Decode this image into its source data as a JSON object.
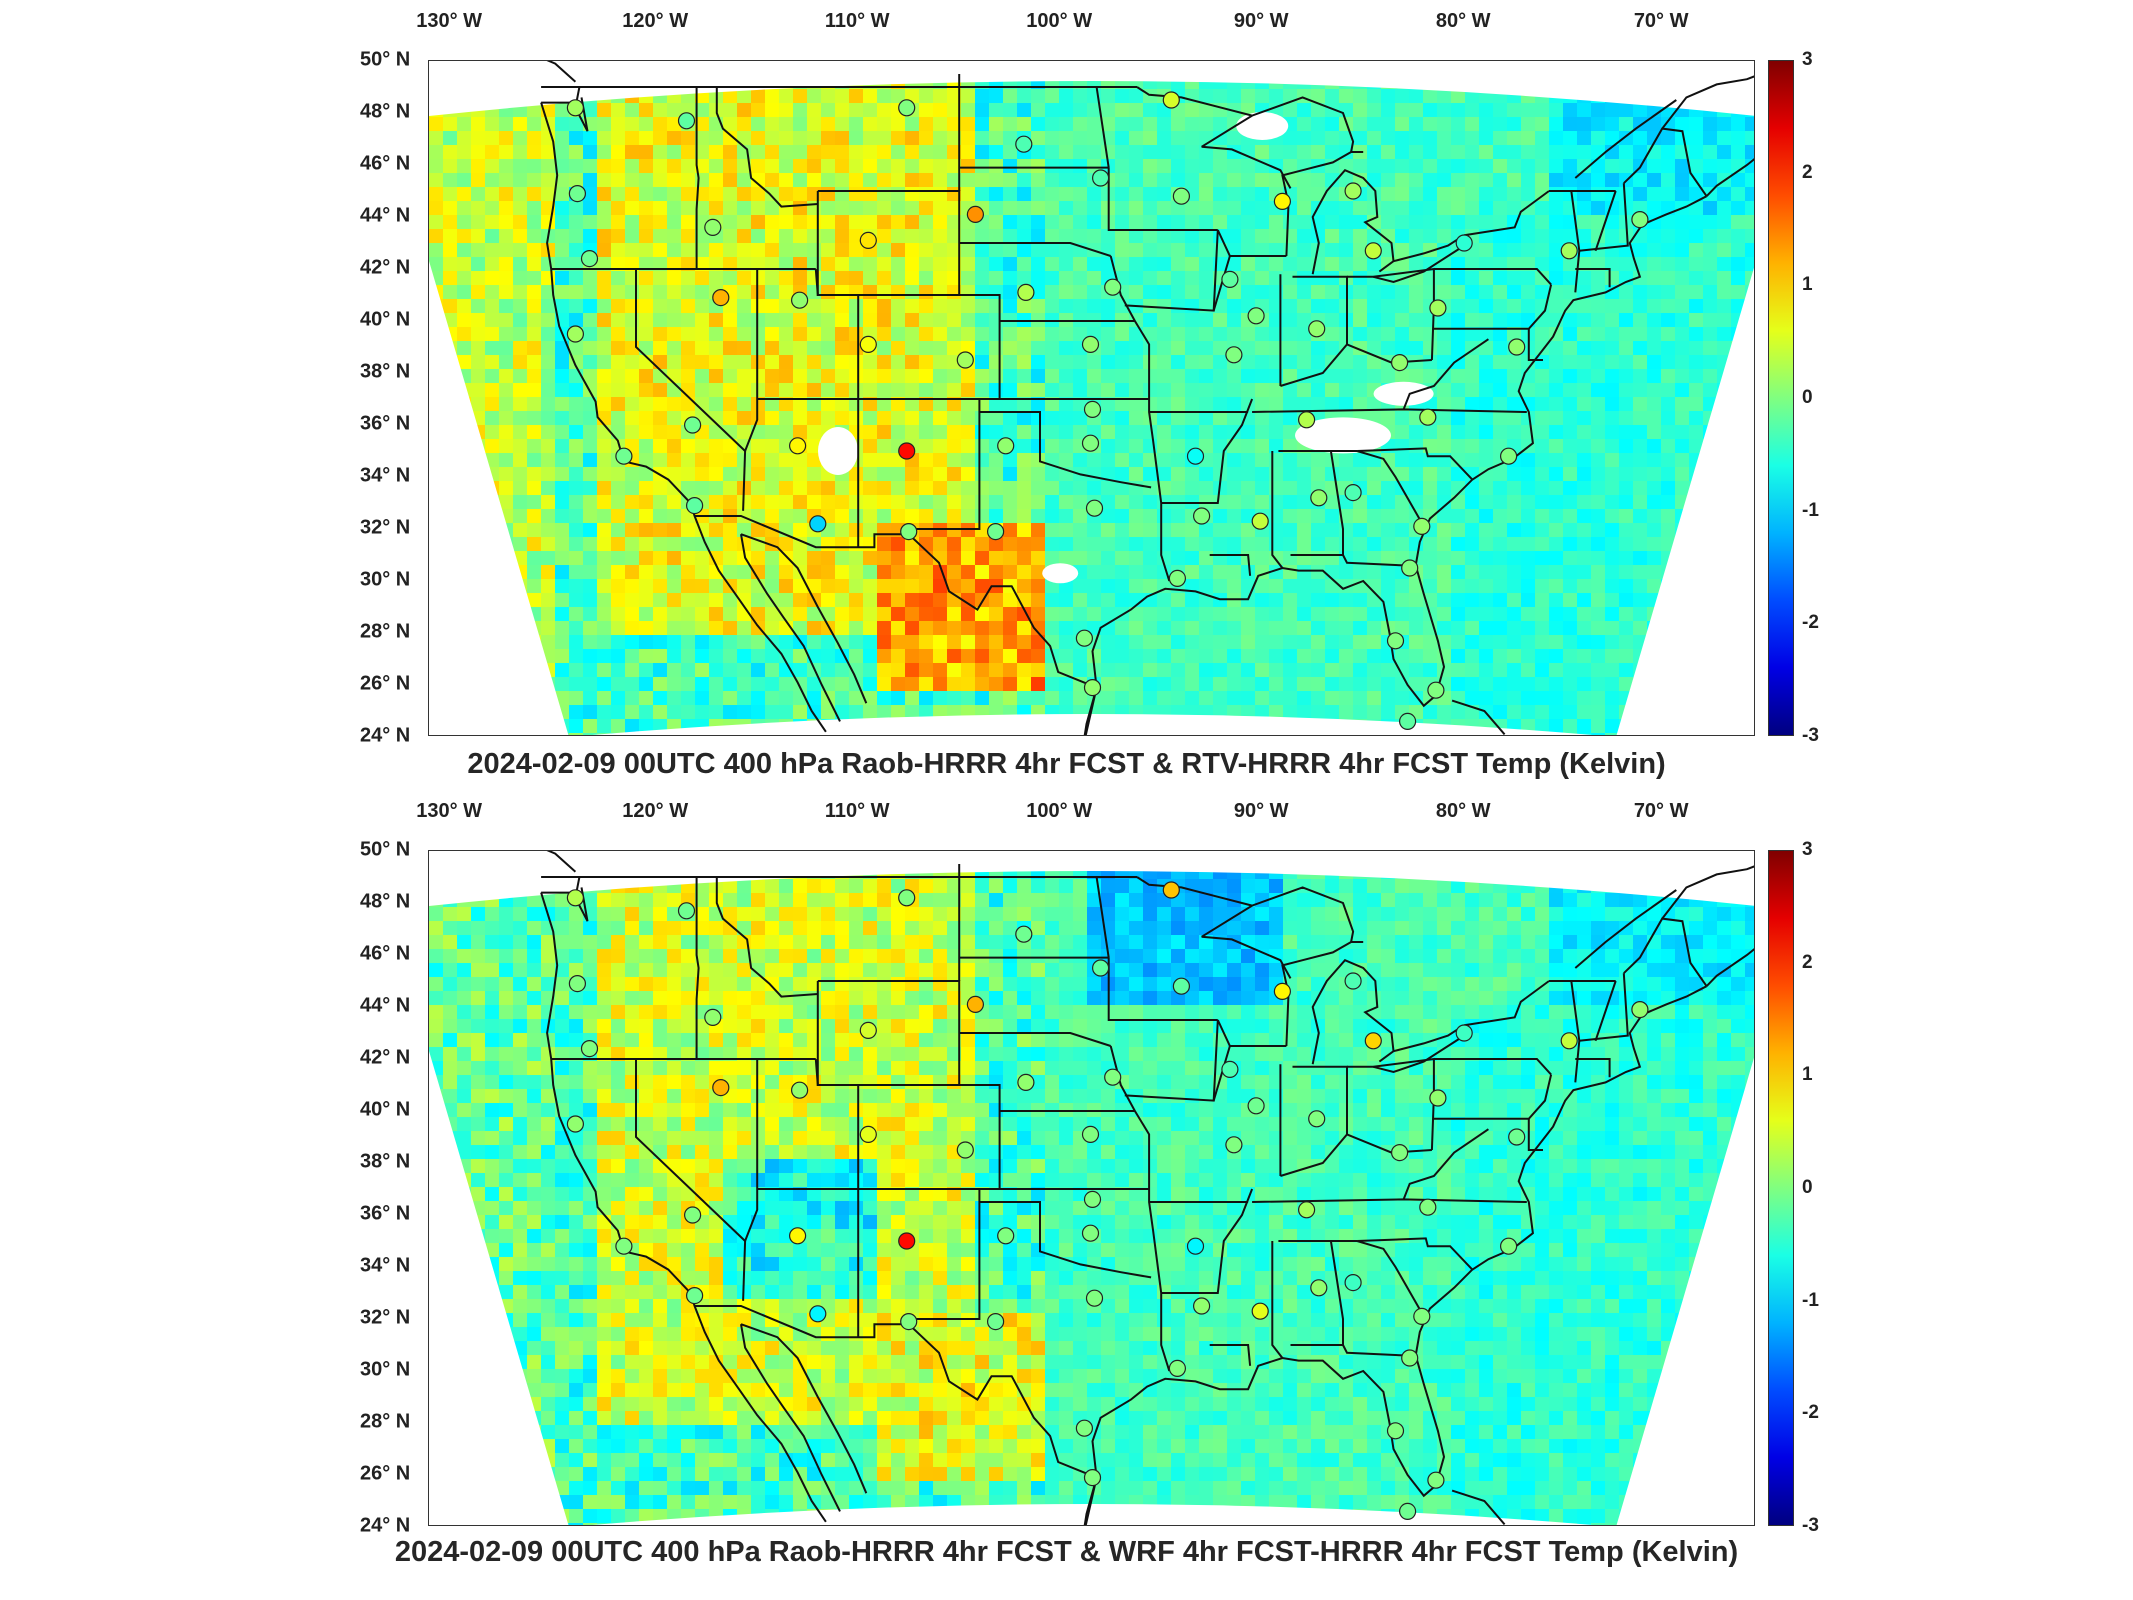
{
  "colors": {
    "colormap": "jet",
    "frame": "#333333",
    "borders": "#111111",
    "missing_data": "#ffffff"
  },
  "legend": {
    "ticks": [
      "3",
      "2",
      "1",
      "0",
      "-1",
      "-2",
      "-3"
    ],
    "range": [
      -3,
      3
    ]
  },
  "axes": {
    "lon_labels": [
      "130° W",
      "120° W",
      "110° W",
      "100° W",
      "90° W",
      "80° W",
      "70° W"
    ],
    "lat_labels": [
      "50° N",
      "48° N",
      "46° N",
      "44° N",
      "42° N",
      "40° N",
      "38° N",
      "36° N",
      "34° N",
      "32° N",
      "30° N",
      "28° N",
      "26° N",
      "24° N"
    ]
  },
  "panels": [
    {
      "title": "2024-02-09 00UTC 400 hPa Raob-HRRR 4hr FCST & RTV-HRRR 4hr FCST Temp (Kelvin)",
      "field": "RTV-HRRR minus HRRR temperature difference",
      "missing_regions": true
    },
    {
      "title": "2024-02-09 00UTC 400 hPa Raob-HRRR 4hr FCST & WRF 4hr FCST-HRRR 4hr FCST Temp (Kelvin)",
      "field": "WRF minus HRRR temperature difference",
      "missing_regions": false
    }
  ],
  "chart_data": {
    "type": "heatmap",
    "units": "Kelvin",
    "value_range": [
      -3,
      3
    ],
    "raob_stations": [
      {
        "lon": -123.0,
        "lat": 48.2,
        "top": 0.2,
        "bottom": 0.3
      },
      {
        "lon": -117.5,
        "lat": 47.7,
        "top": -0.2,
        "bottom": -0.1
      },
      {
        "lon": -106.6,
        "lat": 48.2,
        "top": 0.0,
        "bottom": 0.0
      },
      {
        "lon": -100.8,
        "lat": 46.8,
        "top": -0.3,
        "bottom": -0.1
      },
      {
        "lon": -97.0,
        "lat": 45.5,
        "top": -0.3,
        "bottom": -0.2
      },
      {
        "lon": -93.5,
        "lat": 48.5,
        "top": 0.5,
        "bottom": 1.1
      },
      {
        "lon": -93.0,
        "lat": 44.8,
        "top": 0.0,
        "bottom": -0.2
      },
      {
        "lon": -88.0,
        "lat": 44.6,
        "top": 0.8,
        "bottom": 0.8
      },
      {
        "lon": -84.5,
        "lat": 45.0,
        "top": 0.2,
        "bottom": -0.3
      },
      {
        "lon": -83.5,
        "lat": 42.7,
        "top": 0.4,
        "bottom": 1.0
      },
      {
        "lon": -79.0,
        "lat": 43.0,
        "top": -0.5,
        "bottom": -0.4
      },
      {
        "lon": -73.8,
        "lat": 42.7,
        "top": 0.2,
        "bottom": 0.4
      },
      {
        "lon": -70.3,
        "lat": 43.9,
        "top": 0.0,
        "bottom": 0.1
      },
      {
        "lon": -122.9,
        "lat": 44.9,
        "top": -0.1,
        "bottom": 0.0
      },
      {
        "lon": -116.2,
        "lat": 43.6,
        "top": 0.1,
        "bottom": 0.1
      },
      {
        "lon": -108.5,
        "lat": 43.1,
        "top": 0.9,
        "bottom": 0.5
      },
      {
        "lon": -103.2,
        "lat": 44.1,
        "top": 1.4,
        "bottom": 1.2
      },
      {
        "lon": -122.3,
        "lat": 42.4,
        "top": -0.1,
        "bottom": 0.0
      },
      {
        "lon": -115.8,
        "lat": 40.9,
        "top": 1.2,
        "bottom": 1.2
      },
      {
        "lon": -111.9,
        "lat": 40.8,
        "top": 0.1,
        "bottom": 0.1
      },
      {
        "lon": -108.5,
        "lat": 39.1,
        "top": 0.7,
        "bottom": 0.6
      },
      {
        "lon": -100.7,
        "lat": 41.1,
        "top": 0.3,
        "bottom": 0.1
      },
      {
        "lon": -96.4,
        "lat": 41.3,
        "top": 0.0,
        "bottom": 0.0
      },
      {
        "lon": -90.6,
        "lat": 41.6,
        "top": -0.2,
        "bottom": -0.3
      },
      {
        "lon": -89.3,
        "lat": 40.2,
        "top": 0.0,
        "bottom": -0.1
      },
      {
        "lon": -86.3,
        "lat": 39.7,
        "top": 0.1,
        "bottom": 0.0
      },
      {
        "lon": -80.3,
        "lat": 40.5,
        "top": 0.2,
        "bottom": 0.1
      },
      {
        "lon": -76.4,
        "lat": 39.0,
        "top": 0.1,
        "bottom": -0.1
      },
      {
        "lon": -123.0,
        "lat": 39.5,
        "top": 0.2,
        "bottom": 0.1
      },
      {
        "lon": -97.5,
        "lat": 39.1,
        "top": 0.1,
        "bottom": 0.0
      },
      {
        "lon": -103.7,
        "lat": 38.5,
        "top": 0.2,
        "bottom": 0.1
      },
      {
        "lon": -90.4,
        "lat": 38.7,
        "top": 0.0,
        "bottom": 0.0
      },
      {
        "lon": -82.2,
        "lat": 38.4,
        "top": 0.1,
        "bottom": 0.0
      },
      {
        "lon": -117.2,
        "lat": 36.0,
        "top": -0.1,
        "bottom": 0.0
      },
      {
        "lon": -112.0,
        "lat": 35.2,
        "top": 0.8,
        "bottom": 0.8
      },
      {
        "lon": -106.6,
        "lat": 35.0,
        "top": 2.2,
        "bottom": 2.2
      },
      {
        "lon": -101.7,
        "lat": 35.2,
        "top": 0.1,
        "bottom": 0.0
      },
      {
        "lon": -97.4,
        "lat": 36.6,
        "top": 0.0,
        "bottom": 0.0
      },
      {
        "lon": -97.5,
        "lat": 35.3,
        "top": 0.0,
        "bottom": 0.0
      },
      {
        "lon": -92.3,
        "lat": 34.8,
        "top": -0.7,
        "bottom": -0.8
      },
      {
        "lon": -86.8,
        "lat": 36.2,
        "top": 0.3,
        "bottom": 0.2
      },
      {
        "lon": -80.8,
        "lat": 36.3,
        "top": 0.2,
        "bottom": 0.0
      },
      {
        "lon": -76.8,
        "lat": 34.8,
        "top": 0.0,
        "bottom": 0.0
      },
      {
        "lon": -120.6,
        "lat": 34.8,
        "top": -0.1,
        "bottom": 0.0
      },
      {
        "lon": -117.1,
        "lat": 32.9,
        "top": -0.2,
        "bottom": -0.1
      },
      {
        "lon": -111.0,
        "lat": 32.2,
        "top": -1.0,
        "bottom": -0.8
      },
      {
        "lon": -106.5,
        "lat": 31.9,
        "top": 0.0,
        "bottom": 0.0
      },
      {
        "lon": -102.2,
        "lat": 31.9,
        "top": -0.1,
        "bottom": -0.1
      },
      {
        "lon": -97.3,
        "lat": 32.8,
        "top": 0.0,
        "bottom": 0.0
      },
      {
        "lon": -92.0,
        "lat": 32.5,
        "top": 0.0,
        "bottom": 0.1
      },
      {
        "lon": -89.1,
        "lat": 32.3,
        "top": 0.4,
        "bottom": 0.6
      },
      {
        "lon": -86.2,
        "lat": 33.2,
        "top": 0.1,
        "bottom": 0.1
      },
      {
        "lon": -84.5,
        "lat": 33.4,
        "top": -0.3,
        "bottom": -0.4
      },
      {
        "lon": -81.1,
        "lat": 32.1,
        "top": 0.1,
        "bottom": 0.0
      },
      {
        "lon": -93.2,
        "lat": 30.1,
        "top": 0.0,
        "bottom": 0.0
      },
      {
        "lon": -81.7,
        "lat": 30.5,
        "top": 0.0,
        "bottom": 0.0
      },
      {
        "lon": -97.8,
        "lat": 27.8,
        "top": 0.0,
        "bottom": 0.0
      },
      {
        "lon": -97.4,
        "lat": 25.9,
        "top": 0.1,
        "bottom": 0.0
      },
      {
        "lon": -82.4,
        "lat": 27.7,
        "top": 0.0,
        "bottom": 0.0
      },
      {
        "lon": -80.4,
        "lat": 25.8,
        "top": 0.0,
        "bottom": 0.0
      },
      {
        "lon": -81.8,
        "lat": 24.6,
        "top": -0.2,
        "bottom": -0.1
      }
    ]
  }
}
